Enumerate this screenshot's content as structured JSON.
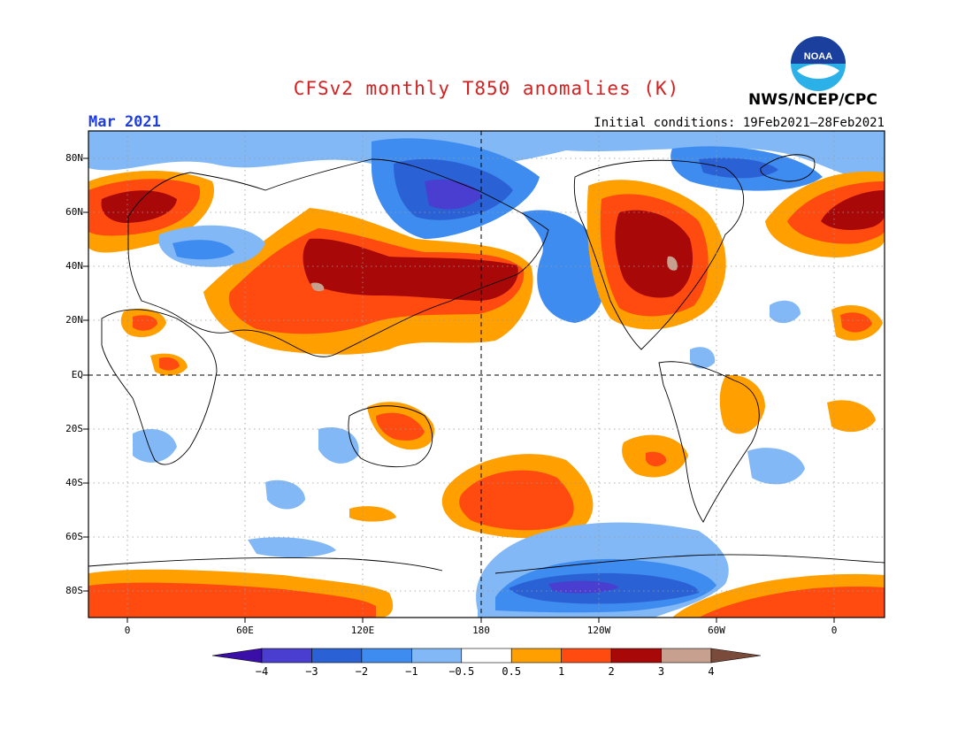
{
  "header": {
    "title": "CFSv2 monthly T850 anomalies (K)",
    "month": "Mar 2021",
    "initial_conditions": "Initial conditions: 19Feb2021–28Feb2021",
    "agency": "NWS/NCEP/CPC",
    "logo_text": "NOAA"
  },
  "map": {
    "projection": "cylindrical equidistant, centered 180",
    "lat_labels": [
      "80N",
      "60N",
      "40N",
      "20N",
      "EQ",
      "20S",
      "40S",
      "60S",
      "80S"
    ],
    "lon_labels": [
      "0",
      "60E",
      "120E",
      "180",
      "120W",
      "60W",
      "0"
    ],
    "grid": "dotted lat/lon lines, dashed equator and dateline"
  },
  "legend": {
    "colors": [
      "#3a0fa8",
      "#4a3ed0",
      "#2a62d6",
      "#3e8cf0",
      "#82b8f6",
      "#ffffff",
      "#ff9f00",
      "#ff4a10",
      "#a80808",
      "#c8a090",
      "#7a4a3a"
    ],
    "labels": [
      "−4",
      "−3",
      "−2",
      "−1",
      "−0.5",
      "0.5",
      "1",
      "2",
      "3",
      "4"
    ]
  }
}
